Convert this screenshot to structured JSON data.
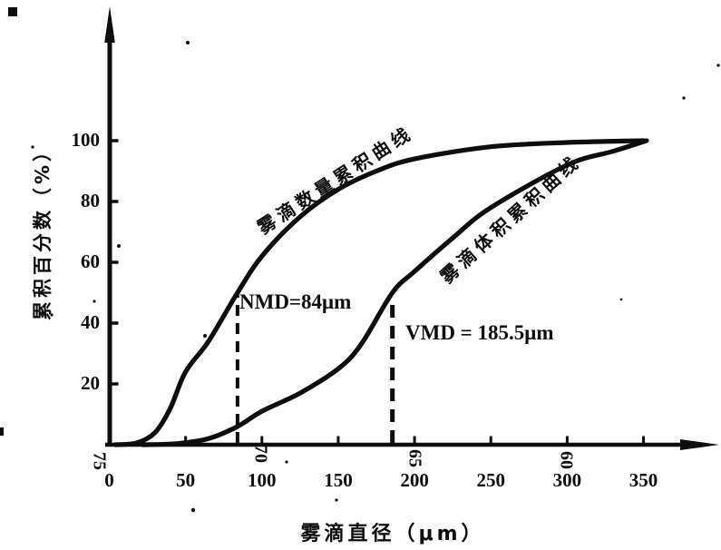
{
  "figure": {
    "background": "#ffffff",
    "ink": "#0d0d0d"
  },
  "chart_data": {
    "type": "line",
    "title": "",
    "xlabel": "雾滴直径（μm）",
    "ylabel": "累积百分数（%）",
    "x_ticks": [
      0,
      50,
      100,
      150,
      200,
      250,
      300,
      350
    ],
    "y_ticks": [
      20,
      40,
      60,
      80,
      100
    ],
    "xlim": [
      0,
      385
    ],
    "ylim": [
      0,
      110
    ],
    "grid": false,
    "legend_position": "labels-rotated-along-curves",
    "series": [
      {
        "name": "雾滴数量累积曲线",
        "points_um_pct": [
          [
            4,
            0
          ],
          [
            18,
            0.6
          ],
          [
            30,
            4
          ],
          [
            40,
            12
          ],
          [
            50,
            24
          ],
          [
            65,
            34
          ],
          [
            84,
            50
          ],
          [
            100,
            62
          ],
          [
            125,
            75
          ],
          [
            150,
            84
          ],
          [
            175,
            90
          ],
          [
            200,
            94
          ],
          [
            250,
            98
          ],
          [
            300,
            99.4
          ],
          [
            350,
            100
          ]
        ]
      },
      {
        "name": "雾滴体积累积曲线",
        "points_um_pct": [
          [
            22,
            0
          ],
          [
            45,
            0.4
          ],
          [
            65,
            2
          ],
          [
            84,
            6
          ],
          [
            100,
            11
          ],
          [
            125,
            17
          ],
          [
            150,
            25
          ],
          [
            165,
            33
          ],
          [
            185.5,
            50
          ],
          [
            200,
            57
          ],
          [
            225,
            68
          ],
          [
            250,
            78
          ],
          [
            300,
            92
          ],
          [
            330,
            96.5
          ],
          [
            352,
            100
          ]
        ]
      }
    ],
    "annotations": [
      {
        "text": "NMD=84μm",
        "x_um": 84,
        "pct": 50,
        "style": "dashed-vertical"
      },
      {
        "text": "VMD = 185.5μm",
        "x_um": 185.5,
        "pct": 50,
        "style": "dashed-vertical"
      }
    ],
    "stray_marks": [
      {
        "text": "75"
      },
      {
        "text": "70"
      },
      {
        "text": "65"
      },
      {
        "text": "60"
      }
    ]
  }
}
